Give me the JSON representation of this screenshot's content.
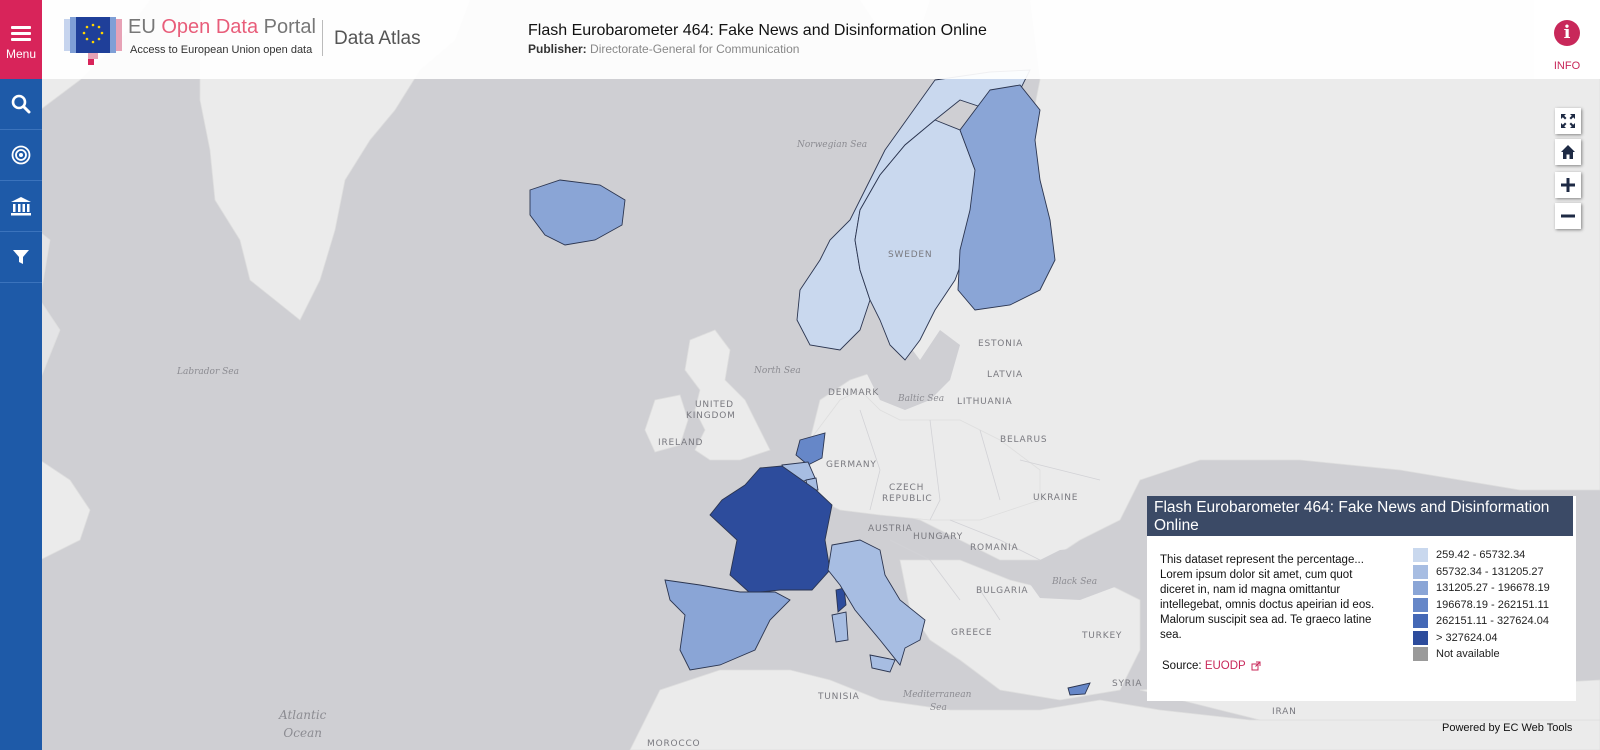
{
  "header": {
    "portal_title_prefix": "EU ",
    "portal_title_highlight": "Open Data",
    "portal_title_suffix": " Portal",
    "portal_subtitle": "Access to European Union open data",
    "section": "Data Atlas",
    "dataset_title": "Flash Eurobarometer 464: Fake News and Disinformation Online",
    "publisher_label": "Publisher:",
    "publisher_value": " Directorate-General for Communication"
  },
  "sidebar": {
    "menu_label": "Menu",
    "items": [
      {
        "icon": "search-icon"
      },
      {
        "icon": "target-icon"
      },
      {
        "icon": "institution-icon"
      },
      {
        "icon": "filter-icon"
      }
    ]
  },
  "info": {
    "label": "INFO"
  },
  "controls": [
    {
      "icon": "fullscreen-icon"
    },
    {
      "icon": "home-icon"
    },
    {
      "icon": "zoom-in-icon"
    },
    {
      "icon": "zoom-out-icon"
    }
  ],
  "map": {
    "country_labels": [
      "SWEDEN",
      "ESTONIA",
      "LATVIA",
      "LITHUANIA",
      "DENMARK",
      "UNITED",
      "KINGDOM",
      "IRELAND",
      "BELARUS",
      "GERMANY",
      "CZECH",
      "REPUBLIC",
      "UKRAINE",
      "AUSTRIA",
      "HUNGARY",
      "ROMANIA",
      "BULGARIA",
      "GREECE",
      "TURKEY",
      "SYRIA",
      "IRAN",
      "TUNISIA",
      "MOROCCO"
    ],
    "sea_labels": [
      "Norwegian Sea",
      "Labrador Sea",
      "North Sea",
      "Baltic Sea",
      "Black Sea",
      "Mediterranean",
      "Sea"
    ],
    "ocean_label": [
      "Atlantic",
      "Ocean"
    ],
    "country_classes": {
      "Norway": 0,
      "Sweden": 0,
      "Finland": 2,
      "Iceland": 2,
      "France": 5,
      "Spain": 2,
      "Italy": 1,
      "Netherlands": 3,
      "Belgium": 1,
      "Luxembourg": 1,
      "Corsica": 5,
      "Cyprus": 3
    }
  },
  "legend_panel": {
    "title": "Flash Eurobarometer 464: Fake News and Disinformation Online",
    "description": "This dataset represent the percentage... Lorem ipsum dolor sit amet, cum quot diceret in, nam id magna omittantur intellegebat, omnis doctus apeirian id eos. Malorum suscipit sea ad. Te graeco latine sea.",
    "source_label": "Source: ",
    "source_link": "EUODP",
    "items": [
      {
        "label": "259.42 - 65732.34",
        "color": "#c9d8ee"
      },
      {
        "label": "65732.34 - 131205.27",
        "color": "#a7bde2"
      },
      {
        "label": "131205.27 - 196678.19",
        "color": "#8aa5d6"
      },
      {
        "label": "196678.19 - 262151.11",
        "color": "#6687c8"
      },
      {
        "label": "262151.11 - 327624.04",
        "color": "#4468b6"
      },
      {
        "label": "> 327624.04",
        "color": "#2d4c9c"
      },
      {
        "label": "Not available",
        "color": "#9a9a9a"
      }
    ]
  },
  "footer": {
    "powered_by": "Powered by EC Web Tools"
  },
  "colors": {
    "sidebar": "#1e5aa8",
    "menu": "#d8245a",
    "accent": "#c8285a",
    "panel_header": "#3b4a66"
  }
}
